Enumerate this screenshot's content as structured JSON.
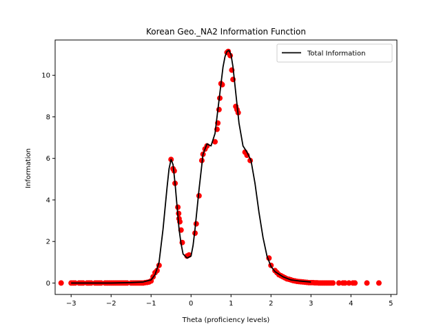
{
  "chart_data": {
    "type": "scatter",
    "title": "Korean Geo._NA2 Information Function",
    "xlabel": "Theta (proficiency levels)",
    "ylabel": "Information",
    "xlim": [
      -3.4,
      5.15
    ],
    "ylim": [
      -0.55,
      11.7
    ],
    "xticks": [
      -3,
      -2,
      -1,
      0,
      1,
      2,
      3,
      4,
      5
    ],
    "yticks": [
      0,
      2,
      4,
      6,
      8,
      10
    ],
    "grid": false,
    "legend": {
      "placement": "top-right",
      "entries": [
        "Total Information"
      ]
    },
    "colors": {
      "line": "#000000",
      "points": "#ff0000"
    },
    "series": [
      {
        "name": "Total Information",
        "type": "line",
        "x": [
          -3.0,
          -2.0,
          -1.5,
          -1.2,
          -1.0,
          -0.9,
          -0.8,
          -0.7,
          -0.6,
          -0.55,
          -0.5,
          -0.45,
          -0.4,
          -0.35,
          -0.3,
          -0.25,
          -0.2,
          -0.1,
          0.0,
          0.05,
          0.1,
          0.2,
          0.3,
          0.4,
          0.5,
          0.6,
          0.7,
          0.8,
          0.85,
          0.9,
          0.95,
          1.0,
          1.05,
          1.1,
          1.2,
          1.3,
          1.4,
          1.5,
          1.6,
          1.7,
          1.8,
          1.9,
          2.0,
          2.1,
          2.3,
          2.5,
          2.7,
          3.0
        ],
        "y": [
          0.0,
          0.0,
          0.02,
          0.05,
          0.15,
          0.4,
          1.0,
          2.6,
          4.6,
          5.5,
          5.95,
          5.7,
          4.8,
          3.7,
          2.6,
          1.9,
          1.4,
          1.2,
          1.3,
          1.8,
          2.6,
          4.5,
          6.2,
          6.7,
          6.6,
          7.2,
          8.8,
          10.4,
          10.9,
          11.15,
          11.2,
          11.0,
          10.4,
          9.5,
          7.7,
          6.6,
          6.3,
          5.9,
          4.8,
          3.4,
          2.2,
          1.3,
          0.8,
          0.55,
          0.3,
          0.15,
          0.1,
          0.05
        ]
      },
      {
        "name": "",
        "type": "scatter",
        "x": [
          -3.25,
          -3.0,
          -2.95,
          -2.9,
          -2.8,
          -2.75,
          -2.7,
          -2.6,
          -2.55,
          -2.5,
          -2.4,
          -2.35,
          -2.3,
          -2.25,
          -2.15,
          -2.1,
          -2.05,
          -2.0,
          -1.95,
          -1.9,
          -1.85,
          -1.8,
          -1.75,
          -1.7,
          -1.65,
          -1.6,
          -1.5,
          -1.45,
          -1.4,
          -1.35,
          -1.3,
          -1.25,
          -1.2,
          -1.15,
          -1.1,
          -1.05,
          -1.0,
          -0.95,
          -0.9,
          -0.85,
          -0.8,
          -0.5,
          -0.45,
          -0.42,
          -0.4,
          -0.33,
          -0.31,
          -0.3,
          -0.28,
          -0.25,
          -0.22,
          -0.1,
          -0.05,
          0.1,
          0.13,
          0.2,
          0.27,
          0.3,
          0.35,
          0.4,
          0.6,
          0.65,
          0.67,
          0.7,
          0.72,
          0.75,
          0.78,
          0.9,
          0.93,
          0.98,
          1.02,
          1.05,
          1.12,
          1.15,
          1.18,
          1.35,
          1.4,
          1.48,
          1.95,
          2.0,
          2.1,
          2.15,
          2.2,
          2.25,
          2.3,
          2.35,
          2.4,
          2.45,
          2.5,
          2.55,
          2.6,
          2.65,
          2.7,
          2.75,
          2.8,
          2.85,
          2.9,
          2.95,
          3.0,
          3.05,
          3.1,
          3.15,
          3.2,
          3.25,
          3.3,
          3.35,
          3.4,
          3.45,
          3.5,
          3.55,
          3.7,
          3.8,
          3.85,
          3.95,
          4.05,
          4.1,
          4.4,
          4.7
        ],
        "y": [
          0.0,
          0.0,
          0.0,
          0.0,
          0.0,
          0.0,
          0.0,
          0.0,
          0.0,
          0.0,
          0.0,
          0.0,
          0.0,
          0.0,
          0.0,
          0.0,
          0.0,
          0.0,
          0.0,
          0.0,
          0.0,
          0.0,
          0.0,
          0.0,
          0.0,
          0.0,
          0.0,
          0.0,
          0.0,
          0.0,
          0.0,
          0.0,
          0.0,
          0.02,
          0.03,
          0.05,
          0.1,
          0.3,
          0.5,
          0.6,
          0.85,
          5.95,
          5.5,
          5.4,
          4.8,
          3.65,
          3.35,
          3.1,
          2.95,
          2.55,
          1.95,
          1.3,
          1.35,
          2.4,
          2.85,
          4.2,
          5.9,
          6.2,
          6.45,
          6.6,
          6.8,
          7.4,
          7.7,
          8.35,
          8.9,
          9.6,
          9.55,
          11.1,
          11.15,
          10.95,
          10.25,
          9.8,
          8.5,
          8.35,
          8.2,
          6.3,
          6.15,
          5.9,
          1.2,
          0.85,
          0.6,
          0.5,
          0.4,
          0.35,
          0.3,
          0.25,
          0.2,
          0.18,
          0.15,
          0.12,
          0.1,
          0.08,
          0.07,
          0.06,
          0.05,
          0.04,
          0.03,
          0.02,
          0.02,
          0.02,
          0.01,
          0.01,
          0.0,
          0.0,
          0.0,
          0.0,
          0.0,
          0.0,
          0.0,
          0.0,
          0.0,
          0.0,
          0.0,
          0.0,
          0.0,
          0.0,
          0.0,
          0.0
        ]
      }
    ]
  }
}
